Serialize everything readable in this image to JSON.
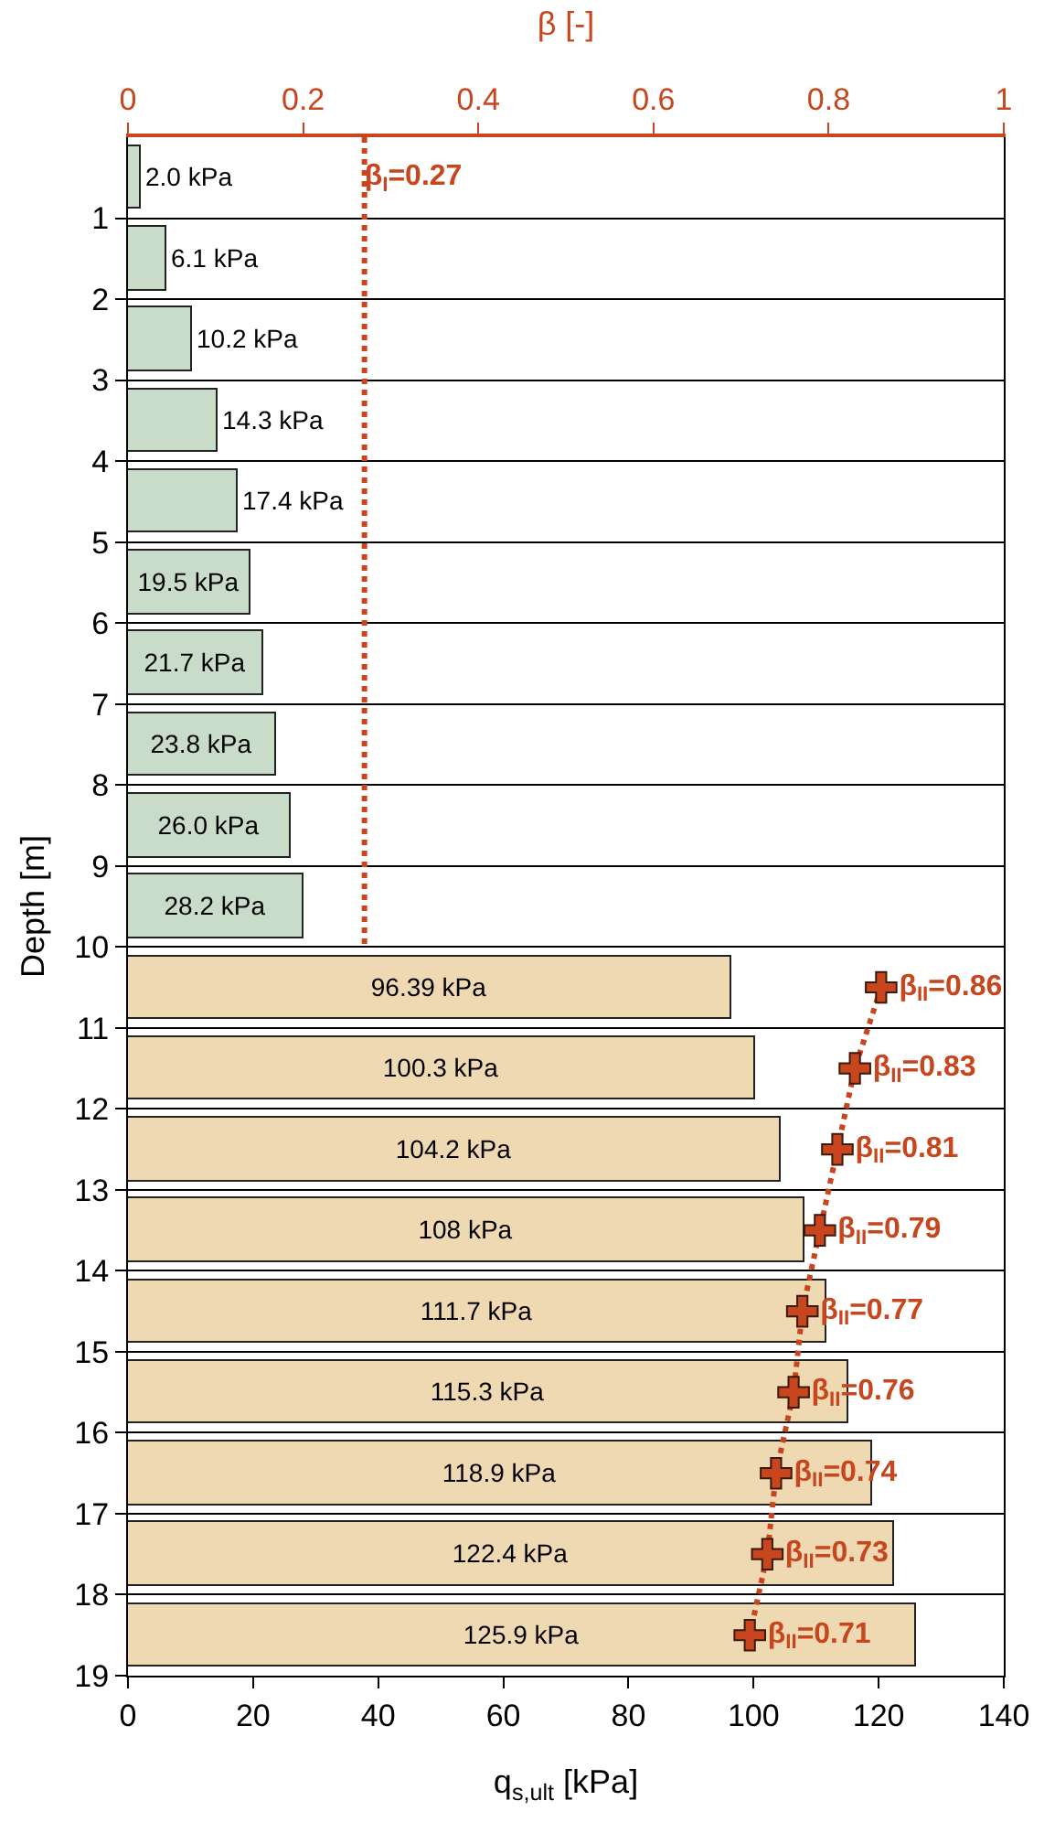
{
  "chart_data": {
    "type": "bar",
    "orientation": "horizontal",
    "xlabel": "q$_{s,ult}$ [kPa]",
    "ylabel": "Depth [m]",
    "x2label": "β [-]",
    "xlim": [
      0,
      140
    ],
    "xticks": [
      0,
      20,
      40,
      60,
      80,
      100,
      120,
      140
    ],
    "x2lim": [
      0,
      1
    ],
    "x2ticks": [
      0,
      0.2,
      0.4,
      0.6,
      0.8,
      1
    ],
    "ylim": [
      19,
      0
    ],
    "yticks": [
      1,
      2,
      3,
      4,
      5,
      6,
      7,
      8,
      9,
      10,
      11,
      12,
      13,
      14,
      15,
      16,
      17,
      18,
      19
    ],
    "grid": "y",
    "series": [
      {
        "color": "#c9dcc9",
        "x": [
          0.5,
          1.5,
          2.5,
          3.5,
          4.5,
          5.5,
          6.5,
          7.5,
          8.5,
          9.5
        ],
        "values": [
          2.0,
          6.1,
          10.2,
          14.3,
          17.4,
          19.5,
          21.7,
          23.8,
          26.0,
          28.2
        ],
        "value_labels": [
          "2.0 kPa",
          "6.1 kPa",
          "10.2 kPa",
          "14.3 kPa",
          "17.4 kPa",
          "19.5 kPa",
          "21.7 kPa",
          "23.8 kPa",
          "26.0 kPa",
          "28.2 kPa"
        ]
      },
      {
        "color": "#efd9b3",
        "x": [
          10.5,
          11.5,
          12.5,
          13.5,
          14.5,
          15.5,
          16.5,
          17.5,
          18.5
        ],
        "values": [
          96.39,
          100.3,
          104.2,
          108,
          111.7,
          115.3,
          118.9,
          122.4,
          125.9
        ],
        "value_labels": [
          "96.39 kPa",
          "100.3 kPa",
          "104.2 kPa",
          "108 kPa",
          "111.7 kPa",
          "115.3 kPa",
          "118.9 kPa",
          "122.4 kPa",
          "125.9 kPa"
        ]
      },
      {
        "type": "line",
        "axis": "x2",
        "color": "#c8461e",
        "line_style": "dotted",
        "marker": "none",
        "x": [
          0,
          0.5,
          10
        ],
        "values": [
          0.27,
          0.27,
          0.27
        ],
        "value_labels": [
          null,
          "β$_{I}$=0.27",
          null
        ]
      },
      {
        "type": "line",
        "axis": "x2",
        "color": "#c8461e",
        "line_style": "dotted",
        "marker": "cross",
        "x": [
          10.5,
          11.5,
          12.5,
          13.5,
          14.5,
          15.5,
          16.5,
          17.5,
          18.5
        ],
        "values": [
          0.86,
          0.83,
          0.81,
          0.79,
          0.77,
          0.76,
          0.74,
          0.73,
          0.71
        ],
        "value_labels": [
          "β$_{II}$=0.86",
          "β$_{II}$=0.83",
          "β$_{II}$=0.81",
          "β$_{II}$=0.79",
          "β$_{II}$=0.77",
          "β$_{II}$=0.76",
          "β$_{II}$=0.74",
          "β$_{II}$=0.73",
          "β$_{II}$=0.71"
        ]
      }
    ]
  }
}
